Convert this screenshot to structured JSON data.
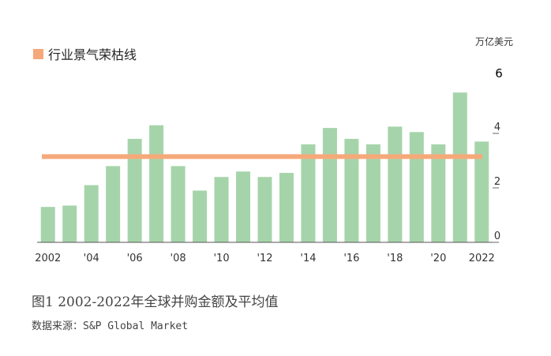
{
  "chart_data": {
    "type": "bar",
    "categories": [
      "2002",
      "2003",
      "2004",
      "2005",
      "2006",
      "2007",
      "2008",
      "2009",
      "2010",
      "2011",
      "2012",
      "2013",
      "2014",
      "2015",
      "2016",
      "2017",
      "2018",
      "2019",
      "2020",
      "2021",
      "2022"
    ],
    "x_tick_labels": [
      "2002",
      "",
      "'04",
      "",
      "'06",
      "",
      "'08",
      "",
      "'10",
      "",
      "'12",
      "",
      "'14",
      "",
      "'16",
      "",
      "'18",
      "",
      "'20",
      "",
      "2022"
    ],
    "values": [
      1.3,
      1.35,
      2.1,
      2.8,
      3.8,
      4.3,
      2.8,
      1.9,
      2.4,
      2.6,
      2.4,
      2.55,
      3.6,
      4.2,
      3.8,
      3.6,
      4.25,
      4.05,
      3.6,
      5.5,
      3.7
    ],
    "reference_line": {
      "label": "行业景气荣枯线",
      "value": 3.15,
      "color": "#f5a97a"
    },
    "y_ticks": [
      0,
      2,
      4,
      6
    ],
    "ylim": [
      0,
      6
    ],
    "y_unit": "万亿美元",
    "bar_color": "#a6d4aa",
    "grid": false,
    "legend": "top-left",
    "title": "",
    "xlabel": "",
    "ylabel": ""
  },
  "legend_label": "行业景气荣枯线",
  "unit_label": "万亿美元",
  "caption": "图1 2002-2022年全球并购金额及平均值",
  "source": "数据来源：S&P Global Market"
}
